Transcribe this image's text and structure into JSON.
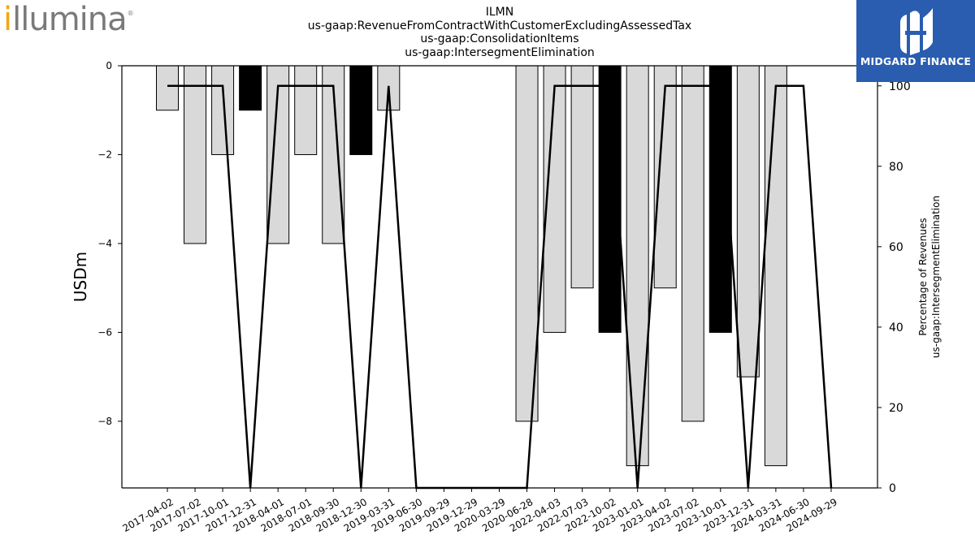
{
  "header": {
    "title_lines": [
      "ILMN",
      "us-gaap:RevenueFromContractWithCustomerExcludingAssessedTax",
      "us-gaap:ConsolidationItems",
      "us-gaap:IntersegmentElimination"
    ]
  },
  "logos": {
    "left": {
      "first_letter": "i",
      "rest": "llumina",
      "reg_mark": "®",
      "accent_color": "#f3a712",
      "text_color": "#7a7a7a"
    },
    "right": {
      "brand": "MIDGARD FINANCE",
      "background": "#2a5db0"
    }
  },
  "chart_data": {
    "type": "bar",
    "categories": [
      "2017-04-02",
      "2017-07-02",
      "2017-10-01",
      "2017-12-31",
      "2018-04-01",
      "2018-07-01",
      "2018-09-30",
      "2018-12-30",
      "2019-03-31",
      "2019-06-30",
      "2019-09-29",
      "2019-12-29",
      "2020-03-29",
      "2020-06-28",
      "2022-04-03",
      "2022-07-03",
      "2022-10-02",
      "2023-01-01",
      "2023-04-02",
      "2023-07-02",
      "2023-10-01",
      "2023-12-31",
      "2024-03-31",
      "2024-06-30",
      "2024-09-29"
    ],
    "values": [
      -1,
      -4,
      -2,
      -1,
      -4,
      -2,
      -4,
      -2,
      -1,
      0,
      0,
      0,
      0,
      -8,
      -6,
      -5,
      -6,
      -9,
      -5,
      -8,
      -6,
      -7,
      -9,
      0,
      0
    ],
    "bar_colors": [
      "#d9d9d9",
      "#d9d9d9",
      "#d9d9d9",
      "#000000",
      "#d9d9d9",
      "#d9d9d9",
      "#d9d9d9",
      "#000000",
      "#d9d9d9",
      "#d9d9d9",
      "#d9d9d9",
      "#d9d9d9",
      "#d9d9d9",
      "#d9d9d9",
      "#d9d9d9",
      "#d9d9d9",
      "#000000",
      "#d9d9d9",
      "#d9d9d9",
      "#d9d9d9",
      "#000000",
      "#d9d9d9",
      "#d9d9d9",
      "#d9d9d9",
      "#d9d9d9"
    ],
    "line_values": [
      100,
      100,
      100,
      0,
      100,
      100,
      100,
      0,
      100,
      0,
      0,
      0,
      0,
      0,
      100,
      100,
      100,
      0,
      100,
      100,
      100,
      0,
      100,
      100,
      0
    ],
    "ylabel": "USDm",
    "ylim": [
      -9.5,
      0
    ],
    "yticks": [
      0,
      -2,
      -4,
      -6,
      -8
    ],
    "ytick_labels": [
      "0",
      "−2",
      "−4",
      "−6",
      "−8"
    ],
    "y2label_lines": [
      "Percentage of Revenues",
      "us-gaap:IntersegmentElimination"
    ],
    "y2lim": [
      0,
      105
    ],
    "y2ticks": [
      0,
      20,
      40,
      60,
      80,
      100
    ],
    "y2tick_labels": [
      "0",
      "20",
      "40",
      "60",
      "80",
      "100"
    ],
    "grid": false,
    "line_color": "#000000"
  }
}
